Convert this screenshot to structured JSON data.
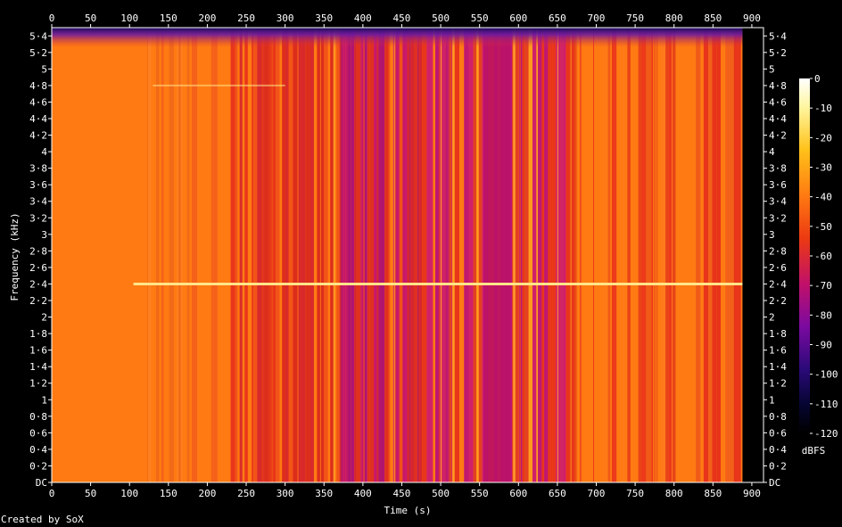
{
  "chart_data": {
    "type": "heatmap",
    "xlabel": "Time (s)",
    "ylabel": "Frequency (kHz)",
    "xlim": [
      0,
      915
    ],
    "ylim": [
      0,
      5.5
    ],
    "x_ticks": [
      "0",
      "50",
      "100",
      "150",
      "200",
      "250",
      "300",
      "350",
      "400",
      "450",
      "500",
      "550",
      "600",
      "650",
      "700",
      "750",
      "800",
      "850",
      "900"
    ],
    "y_ticks": [
      "DC",
      "0·2",
      "0·4",
      "0·6",
      "0·8",
      "1",
      "1·2",
      "1·4",
      "1·6",
      "1·8",
      "2",
      "2·2",
      "2·4",
      "2·6",
      "2·8",
      "3",
      "3·2",
      "3·4",
      "3·6",
      "3·8",
      "4",
      "4·2",
      "4·4",
      "4·6",
      "4·8",
      "5",
      "5·2",
      "5·4"
    ],
    "colorbar": {
      "label": "dBFS",
      "ticks": [
        "0",
        "-10",
        "-20",
        "-30",
        "-40",
        "-50",
        "-60",
        "-70",
        "-80",
        "-90",
        "-100",
        "-110",
        "-120"
      ],
      "range": [
        -120,
        0
      ]
    },
    "tone_lines": [
      {
        "freq_khz": 2.4,
        "start_s": 105,
        "end_s": 888
      },
      {
        "freq_khz": 4.8,
        "start_s": 130,
        "end_s": 300
      }
    ],
    "x_end_s": 888,
    "colors": {
      "background": "#000000",
      "loud": "#ff7a12",
      "mid": "#ec3a12",
      "quiet": "#b8106a",
      "tone": "#ffe488"
    }
  },
  "credit": "Created by SoX"
}
